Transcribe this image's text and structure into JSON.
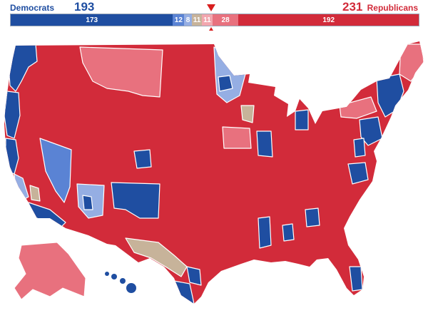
{
  "header": {
    "dem_label": "Democrats",
    "dem_total": "193",
    "rep_label": "Republicans",
    "rep_total": "231"
  },
  "bar": {
    "total_seats": 435,
    "segments": [
      {
        "key": "safe_dem",
        "value": 173,
        "label": "173",
        "color": "#1f4ea1"
      },
      {
        "key": "likely_dem",
        "value": 12,
        "label": "12",
        "color": "#5a83d4"
      },
      {
        "key": "leans_dem",
        "value": 8,
        "label": "8",
        "color": "#95aee3"
      },
      {
        "key": "tossup",
        "value": 11,
        "label": "11",
        "color": "#c7b39a"
      },
      {
        "key": "leans_rep",
        "value": 11,
        "label": "11",
        "color": "#f2a6ae"
      },
      {
        "key": "likely_rep",
        "value": 28,
        "label": "28",
        "color": "#e8717e"
      },
      {
        "key": "safe_rep",
        "value": 192,
        "label": "192",
        "color": "#d22b3a"
      }
    ]
  },
  "map": {
    "colors": {
      "safe_dem": "#1f4ea1",
      "likely_dem": "#5a83d4",
      "leans_dem": "#95aee3",
      "tossup": "#c7b39a",
      "leans_rep": "#f2a6ae",
      "likely_rep": "#e8717e",
      "safe_rep": "#d22b3a",
      "border": "#ffffff"
    }
  }
}
